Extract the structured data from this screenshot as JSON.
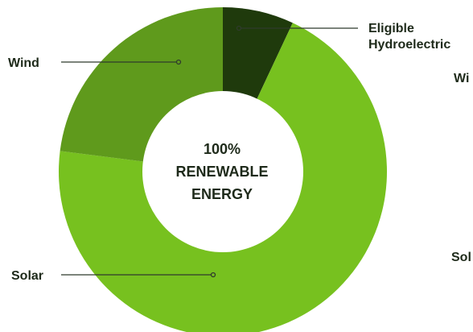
{
  "chart_data": {
    "type": "pie",
    "variant": "donut",
    "title": "",
    "center_label": [
      "100%",
      "RENEWABLE",
      "ENERGY"
    ],
    "slices": [
      {
        "label": "Eligible Hydroelectric",
        "label_lines": [
          "Eligible",
          "Hydroelectric"
        ],
        "value": 7,
        "color": "#1f3a0c"
      },
      {
        "label": "Solar",
        "label_lines": [
          "Solar"
        ],
        "value": 70,
        "color": "#77c11f"
      },
      {
        "label": "Wind",
        "label_lines": [
          "Wind"
        ],
        "value": 23,
        "color": "#5f9a1c"
      }
    ],
    "cropped_legend": [
      "Wi",
      "Sol"
    ],
    "legend": "none"
  }
}
